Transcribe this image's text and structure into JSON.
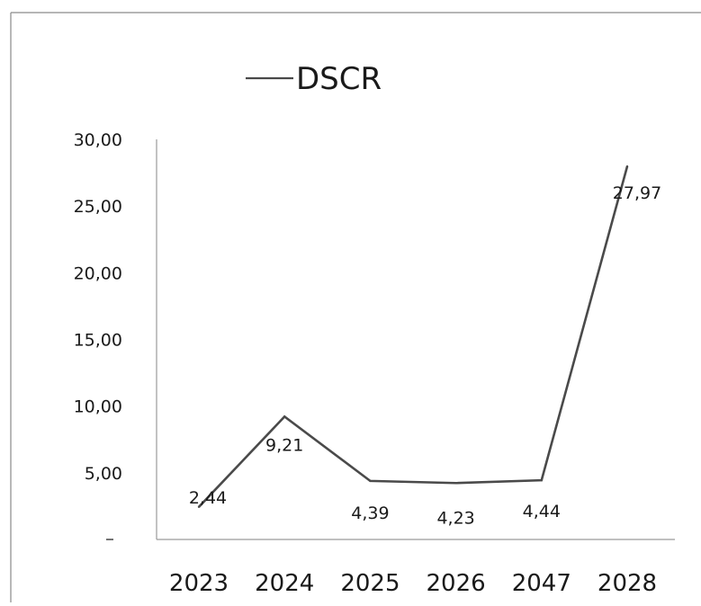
{
  "chart_data": {
    "type": "line",
    "categories": [
      "2023",
      "2024",
      "2025",
      "2026",
      "2047",
      "2028"
    ],
    "series": [
      {
        "name": "DSCR",
        "values": [
          2.44,
          9.21,
          4.39,
          4.23,
          4.44,
          27.97
        ],
        "labels": [
          "2,44",
          "9,21",
          "4,39",
          "4,23",
          "4,44",
          "27,97"
        ],
        "color": "#4a4a4a"
      }
    ],
    "yticks": [
      "5,00",
      "10,00",
      "15,00",
      "20,00",
      "25,00",
      "30,00"
    ],
    "ylim": [
      0,
      30
    ],
    "legend": {
      "label": "DSCR",
      "position": "top"
    },
    "grid": false
  }
}
